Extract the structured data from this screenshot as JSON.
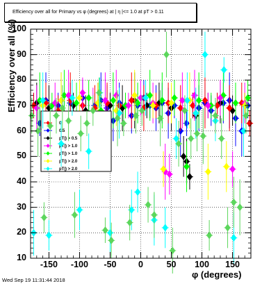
{
  "title": "Efficiency over all for Primary vs φ (degrees) at | η |<= 1.0 at pT > 0.11",
  "timestamp": "Wed Sep 19 11:31:44 2018",
  "chart_data": {
    "type": "scatter",
    "title": "Efficiency over all for Primary vs φ (degrees) at | η |<= 1.0 at pT > 0.11",
    "xlabel": "φ (degrees)",
    "ylabel": "Efficiency over all (%)",
    "xlim": [
      -180,
      180
    ],
    "ylim": [
      10,
      100
    ],
    "x_ticks": [
      -150,
      -100,
      -50,
      0,
      50,
      100,
      150
    ],
    "y_ticks": [
      10,
      20,
      30,
      40,
      50,
      60,
      70,
      80,
      90,
      100
    ],
    "grid": true,
    "legend_position": "upper-left, largely hidden behind data points",
    "legend_entries_visible": [
      "0",
      "0.5",
      "pT|) > 0.5",
      "pT|) > 1.0",
      "pT|) > 1.0",
      "pT|) > 2.0",
      "pT|) > 2.0"
    ],
    "series": [
      {
        "name": "",
        "color": "#0000ff",
        "marker": "diamond",
        "x": [
          -175,
          -165,
          -155,
          -145,
          -135,
          -125,
          -115,
          -105,
          -95,
          -85,
          -75,
          -65,
          -55,
          -45,
          -35,
          -25,
          -15,
          -5,
          5,
          15,
          25,
          35,
          45,
          55,
          65,
          75,
          85,
          95,
          105,
          115,
          125,
          135,
          145,
          155,
          165,
          175
        ],
        "y": [
          70,
          63,
          72,
          60,
          70,
          65,
          71,
          58,
          73,
          66,
          70,
          72,
          69,
          64,
          71,
          70,
          66,
          70,
          73,
          70,
          69,
          71,
          67,
          70,
          60,
          63,
          70,
          69,
          71,
          68,
          70,
          71,
          72,
          65,
          60,
          70
        ]
      },
      {
        "name": "",
        "color": "#000000",
        "marker": "diamond",
        "x": [
          -170,
          -150,
          -130,
          -110,
          -90,
          -70,
          -50,
          -30,
          -10,
          10,
          30,
          50,
          70,
          75,
          80,
          90,
          110,
          130,
          150,
          170
        ],
        "y": [
          71,
          69,
          72,
          70,
          68,
          71,
          70,
          69,
          72,
          70,
          71,
          69,
          50,
          48,
          42,
          66,
          70,
          71,
          68,
          70
        ]
      },
      {
        "name": "",
        "color": "#ff0000",
        "marker": "diamond",
        "x": [
          -175,
          -155,
          -135,
          -115,
          -95,
          -75,
          -55,
          -35,
          -15,
          5,
          25,
          45,
          65,
          85,
          105,
          125,
          145,
          165,
          178
        ],
        "y": [
          70,
          71,
          68,
          72,
          70,
          69,
          71,
          70,
          72,
          69,
          70,
          71,
          69,
          70,
          72,
          70,
          69,
          71,
          63
        ]
      },
      {
        "name": "",
        "color": "#00ff00",
        "marker": "diamond",
        "x": [
          -165,
          -145,
          -125,
          -105,
          -85,
          -65,
          -45,
          -25,
          -5,
          15,
          35,
          55,
          75,
          95,
          115,
          135,
          155,
          175
        ],
        "y": [
          72,
          70,
          74,
          71,
          73,
          68,
          72,
          70,
          71,
          74,
          72,
          73,
          46,
          72,
          70,
          74,
          71,
          73
        ]
      },
      {
        "name": "",
        "color": "#ff00ff",
        "marker": "diamond",
        "x": [
          -170,
          -140,
          -118,
          -95,
          -78,
          -58,
          -40,
          -20,
          0,
          20,
          40,
          47,
          68,
          88,
          110,
          130,
          150,
          170
        ],
        "y": [
          69,
          71,
          74,
          75,
          67,
          72,
          74,
          70,
          73,
          71,
          44,
          43,
          72,
          74,
          70,
          73,
          45,
          71
        ]
      },
      {
        "name": "",
        "color": "#ffff00",
        "marker": "diamond",
        "x": [
          -160,
          -130,
          -100,
          -70,
          -40,
          -10,
          20,
          37,
          50,
          80,
          110,
          140,
          170
        ],
        "y": [
          70,
          72,
          73,
          71,
          68,
          74,
          70,
          45,
          71,
          72,
          44,
          46,
          70
        ]
      },
      {
        "name": "",
        "color": "#00ffff",
        "marker": "diamond",
        "x": [
          -175,
          -160,
          -150,
          -130,
          -112,
          -100,
          -85,
          -67,
          -50,
          -35,
          -15,
          -5,
          8,
          22,
          40,
          58,
          76,
          90,
          105,
          122,
          136,
          152,
          168
        ],
        "y": [
          20,
          72,
          19,
          55,
          73,
          29,
          52,
          75,
          20,
          67,
          29,
          36,
          73,
          25,
          22,
          57,
          72,
          67,
          90,
          64,
          84,
          18,
          60
        ]
      },
      {
        "name": "",
        "color": "#5cd65c",
        "marker": "diamond",
        "x": [
          -178,
          -168,
          -158,
          -148,
          -138,
          -128,
          -118,
          -108,
          -98,
          -88,
          -78,
          -68,
          -58,
          -48,
          -38,
          -28,
          -18,
          -8,
          2,
          12,
          22,
          32,
          42,
          52,
          62,
          72,
          82,
          92,
          102,
          112,
          122,
          132,
          142,
          152,
          162,
          172
        ],
        "y": [
          66,
          60,
          26,
          62,
          66,
          69,
          64,
          27,
          59,
          63,
          68,
          75,
          21,
          17,
          65,
          63,
          24,
          66,
          68,
          31,
          27,
          65,
          90,
          13,
          55,
          68,
          57,
          59,
          58,
          19,
          66,
          57,
          22,
          32,
          30,
          66
        ]
      }
    ]
  }
}
